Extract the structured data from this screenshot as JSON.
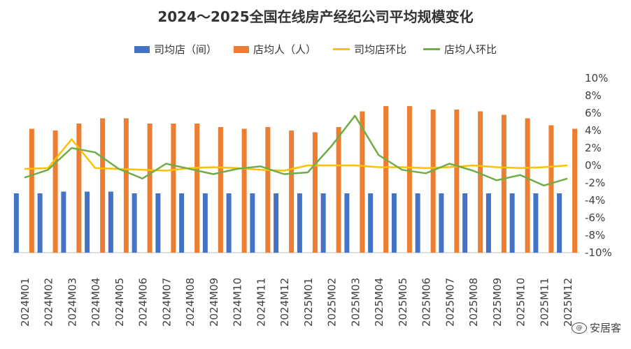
{
  "chart_data": {
    "type": "bar+line",
    "title": "2024～2025全国在线房产经纪公司平均规模变化",
    "categories": [
      "2024M01",
      "2024M02",
      "2024M03",
      "2024M04",
      "2024M05",
      "2024M06",
      "2024M07",
      "2024M08",
      "2024M09",
      "2024M10",
      "2024M11",
      "2024M12",
      "2025M01",
      "2025M02",
      "2025M03",
      "2025M04",
      "2025M05",
      "2025M06",
      "2025M07",
      "2025M08",
      "2025M09",
      "2025M10",
      "2025M11",
      "2025M12"
    ],
    "right_axis": {
      "min": -10,
      "max": 10,
      "step": 2,
      "tick_labels": [
        "10%",
        "8%",
        "6%",
        "4%",
        "2%",
        "0%",
        "-2%",
        "-4%",
        "-6%",
        "-8%",
        "-10%"
      ]
    },
    "series": [
      {
        "name": "司均店（间）",
        "kind": "bar",
        "color": "#4472C4",
        "values": [
          3.4,
          3.4,
          3.5,
          3.5,
          3.5,
          3.4,
          3.4,
          3.4,
          3.4,
          3.4,
          3.4,
          3.4,
          3.4,
          3.4,
          3.4,
          3.4,
          3.4,
          3.4,
          3.4,
          3.4,
          3.4,
          3.4,
          3.4,
          3.4
        ]
      },
      {
        "name": "店均人（人）",
        "kind": "bar",
        "color": "#ED7D31",
        "values": [
          7.1,
          7.0,
          7.4,
          7.7,
          7.7,
          7.4,
          7.4,
          7.4,
          7.2,
          7.1,
          7.2,
          7.0,
          6.9,
          7.2,
          8.1,
          8.4,
          8.4,
          8.2,
          8.2,
          8.1,
          7.9,
          7.7,
          7.3,
          7.1
        ]
      },
      {
        "name": "司均店环比",
        "kind": "line",
        "color": "#FFC000",
        "values": [
          -0.4,
          -0.3,
          3.0,
          -0.3,
          -0.4,
          -0.5,
          -0.6,
          -0.3,
          -0.2,
          -0.3,
          -0.5,
          -0.6,
          0.0,
          0.0,
          0.0,
          -0.2,
          -0.2,
          -0.3,
          -0.2,
          0.0,
          -0.2,
          -0.3,
          -0.2,
          0.0
        ]
      },
      {
        "name": "店均人环比",
        "kind": "line",
        "color": "#70AD47",
        "values": [
          -1.4,
          -0.5,
          2.0,
          1.5,
          -0.4,
          -1.5,
          0.2,
          -0.4,
          -1.0,
          -0.4,
          -0.1,
          -1.0,
          -0.8,
          2.2,
          5.7,
          1.2,
          -0.5,
          -0.9,
          0.2,
          -0.6,
          -1.7,
          -1.1,
          -2.3,
          -1.5
        ]
      }
    ]
  },
  "watermark": {
    "logo_text": "@",
    "text": "安居客"
  }
}
